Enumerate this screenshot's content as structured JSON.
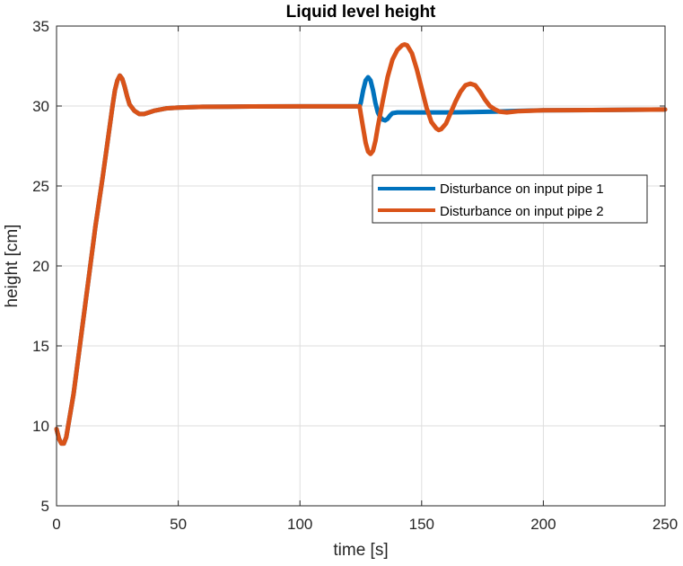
{
  "chart_data": {
    "type": "line",
    "title": "Liquid level height",
    "xlabel": "time [s]",
    "ylabel": "height [cm]",
    "xlim": [
      0,
      250
    ],
    "ylim": [
      5,
      35
    ],
    "xticks": [
      0,
      50,
      100,
      150,
      200,
      250
    ],
    "yticks": [
      5,
      10,
      15,
      20,
      25,
      30,
      35
    ],
    "xtick_labels": [
      "0",
      "50",
      "100",
      "150",
      "200",
      "250"
    ],
    "ytick_labels": [
      "5",
      "10",
      "15",
      "20",
      "25",
      "30",
      "35"
    ],
    "grid": true,
    "legend_position": "upper-right",
    "series": [
      {
        "name": "Disturbance on input pipe 1",
        "color": "#0072BD",
        "points": [
          [
            0,
            9.8
          ],
          [
            1,
            9.2
          ],
          [
            2,
            8.9
          ],
          [
            3,
            8.9
          ],
          [
            4,
            9.3
          ],
          [
            5,
            10.2
          ],
          [
            7,
            12.0
          ],
          [
            10,
            15.5
          ],
          [
            13,
            19.0
          ],
          [
            16,
            22.5
          ],
          [
            19,
            25.6
          ],
          [
            21,
            27.8
          ],
          [
            23,
            30.0
          ],
          [
            24,
            31.0
          ],
          [
            25,
            31.6
          ],
          [
            26,
            31.9
          ],
          [
            27,
            31.7
          ],
          [
            28,
            31.2
          ],
          [
            29,
            30.6
          ],
          [
            30,
            30.1
          ],
          [
            32,
            29.7
          ],
          [
            34,
            29.5
          ],
          [
            36,
            29.5
          ],
          [
            38,
            29.6
          ],
          [
            40,
            29.7
          ],
          [
            45,
            29.85
          ],
          [
            50,
            29.9
          ],
          [
            60,
            29.95
          ],
          [
            80,
            29.97
          ],
          [
            100,
            29.98
          ],
          [
            110,
            29.98
          ],
          [
            120,
            29.98
          ],
          [
            124.5,
            29.98
          ],
          [
            125,
            30.2
          ],
          [
            126,
            31.0
          ],
          [
            127,
            31.6
          ],
          [
            128,
            31.8
          ],
          [
            129,
            31.6
          ],
          [
            130,
            31.0
          ],
          [
            131,
            30.2
          ],
          [
            132,
            29.6
          ],
          [
            133,
            29.3
          ],
          [
            134,
            29.15
          ],
          [
            135,
            29.1
          ],
          [
            136,
            29.2
          ],
          [
            137,
            29.4
          ],
          [
            138,
            29.55
          ],
          [
            140,
            29.6
          ],
          [
            145,
            29.6
          ],
          [
            150,
            29.6
          ],
          [
            160,
            29.6
          ],
          [
            170,
            29.62
          ],
          [
            180,
            29.65
          ],
          [
            190,
            29.7
          ],
          [
            200,
            29.73
          ],
          [
            220,
            29.75
          ],
          [
            250,
            29.78
          ]
        ]
      },
      {
        "name": "Disturbance on input pipe 2",
        "color": "#D95319",
        "points": [
          [
            0,
            9.8
          ],
          [
            1,
            9.2
          ],
          [
            2,
            8.9
          ],
          [
            3,
            8.9
          ],
          [
            4,
            9.3
          ],
          [
            5,
            10.2
          ],
          [
            7,
            12.0
          ],
          [
            10,
            15.5
          ],
          [
            13,
            19.0
          ],
          [
            16,
            22.5
          ],
          [
            19,
            25.6
          ],
          [
            21,
            27.8
          ],
          [
            23,
            30.0
          ],
          [
            24,
            31.0
          ],
          [
            25,
            31.6
          ],
          [
            26,
            31.9
          ],
          [
            27,
            31.7
          ],
          [
            28,
            31.2
          ],
          [
            29,
            30.6
          ],
          [
            30,
            30.1
          ],
          [
            32,
            29.7
          ],
          [
            34,
            29.5
          ],
          [
            36,
            29.5
          ],
          [
            38,
            29.6
          ],
          [
            40,
            29.7
          ],
          [
            45,
            29.85
          ],
          [
            50,
            29.9
          ],
          [
            60,
            29.95
          ],
          [
            80,
            29.97
          ],
          [
            100,
            29.98
          ],
          [
            110,
            29.98
          ],
          [
            120,
            29.98
          ],
          [
            124.5,
            29.98
          ],
          [
            125,
            29.5
          ],
          [
            126,
            28.6
          ],
          [
            127,
            27.7
          ],
          [
            128,
            27.15
          ],
          [
            129,
            27.0
          ],
          [
            130,
            27.2
          ],
          [
            131,
            27.8
          ],
          [
            132,
            28.7
          ],
          [
            134,
            30.3
          ],
          [
            136,
            31.8
          ],
          [
            138,
            32.9
          ],
          [
            140,
            33.5
          ],
          [
            142,
            33.8
          ],
          [
            143,
            33.85
          ],
          [
            144,
            33.8
          ],
          [
            146,
            33.3
          ],
          [
            148,
            32.3
          ],
          [
            150,
            31.1
          ],
          [
            152,
            29.9
          ],
          [
            154,
            29.0
          ],
          [
            156,
            28.6
          ],
          [
            157,
            28.5
          ],
          [
            158,
            28.55
          ],
          [
            160,
            28.9
          ],
          [
            162,
            29.6
          ],
          [
            164,
            30.3
          ],
          [
            166,
            30.9
          ],
          [
            168,
            31.3
          ],
          [
            170,
            31.4
          ],
          [
            172,
            31.3
          ],
          [
            174,
            30.9
          ],
          [
            176,
            30.4
          ],
          [
            178,
            30.0
          ],
          [
            180,
            29.8
          ],
          [
            182,
            29.65
          ],
          [
            185,
            29.6
          ],
          [
            190,
            29.68
          ],
          [
            200,
            29.73
          ],
          [
            220,
            29.75
          ],
          [
            250,
            29.78
          ]
        ]
      }
    ]
  }
}
